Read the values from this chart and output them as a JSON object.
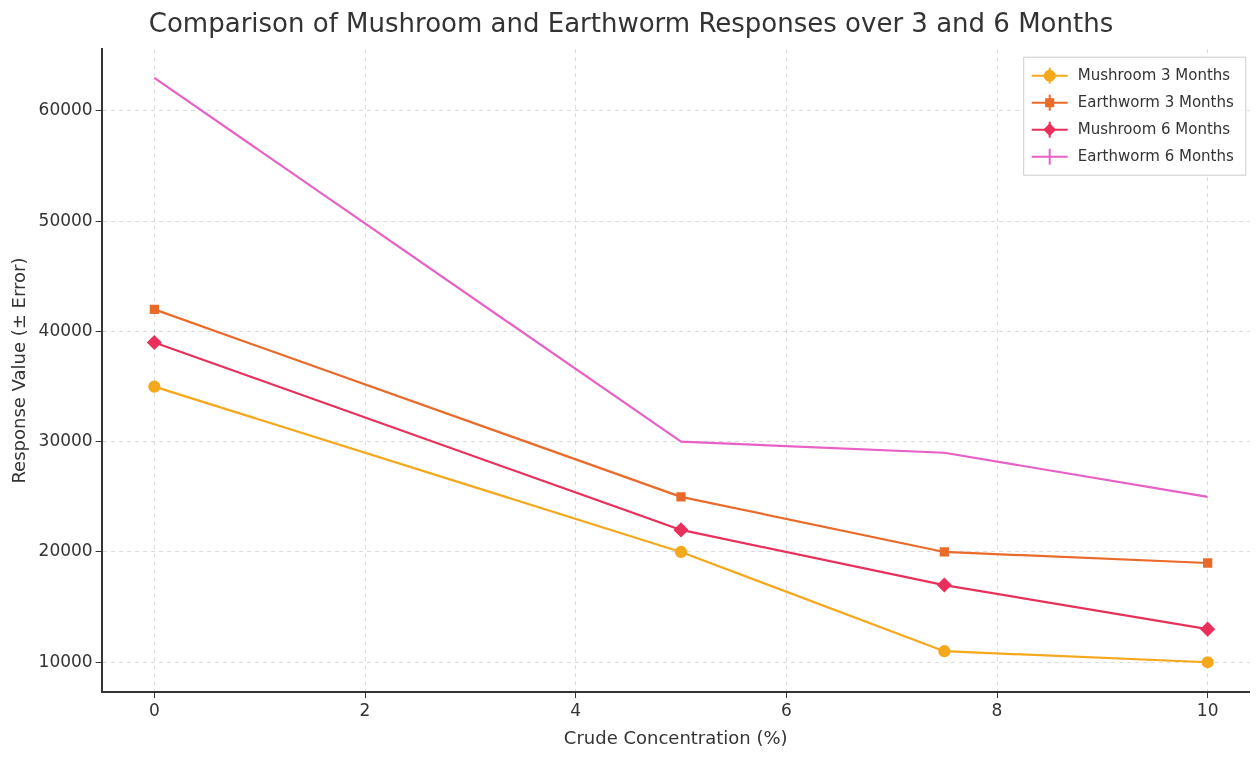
{
  "chart_data": {
    "type": "line",
    "title": "Comparison of Mushroom and Earthworm Responses over 3 and 6 Months",
    "xlabel": "Crude Concentration (%)",
    "ylabel": "Response Value (± Error)",
    "x": [
      0,
      5,
      7.5,
      10
    ],
    "series": [
      {
        "name": "Mushroom 3 Months",
        "color": "#f5a81c",
        "marker": "circle",
        "values": [
          35000,
          20000,
          11000,
          10000
        ]
      },
      {
        "name": "Earthworm 3 Months",
        "color": "#ea6a2a",
        "marker": "square",
        "values": [
          42000,
          25000,
          20000,
          19000
        ]
      },
      {
        "name": "Mushroom 6 Months",
        "color": "#e8305a",
        "marker": "diamond",
        "values": [
          39000,
          22000,
          17000,
          13000
        ]
      },
      {
        "name": "Earthworm 6 Months",
        "color": "#e85fc8",
        "marker": "none",
        "values": [
          63000,
          30000,
          29000,
          25000
        ]
      }
    ],
    "xlim": [
      -0.5,
      10.4
    ],
    "xticks": [
      0,
      2,
      4,
      6,
      8,
      10
    ],
    "ylim": [
      7300,
      65600
    ],
    "yticks": [
      10000,
      20000,
      30000,
      40000,
      50000,
      60000
    ],
    "grid": true,
    "legend": "top right",
    "line_style": "solid"
  }
}
